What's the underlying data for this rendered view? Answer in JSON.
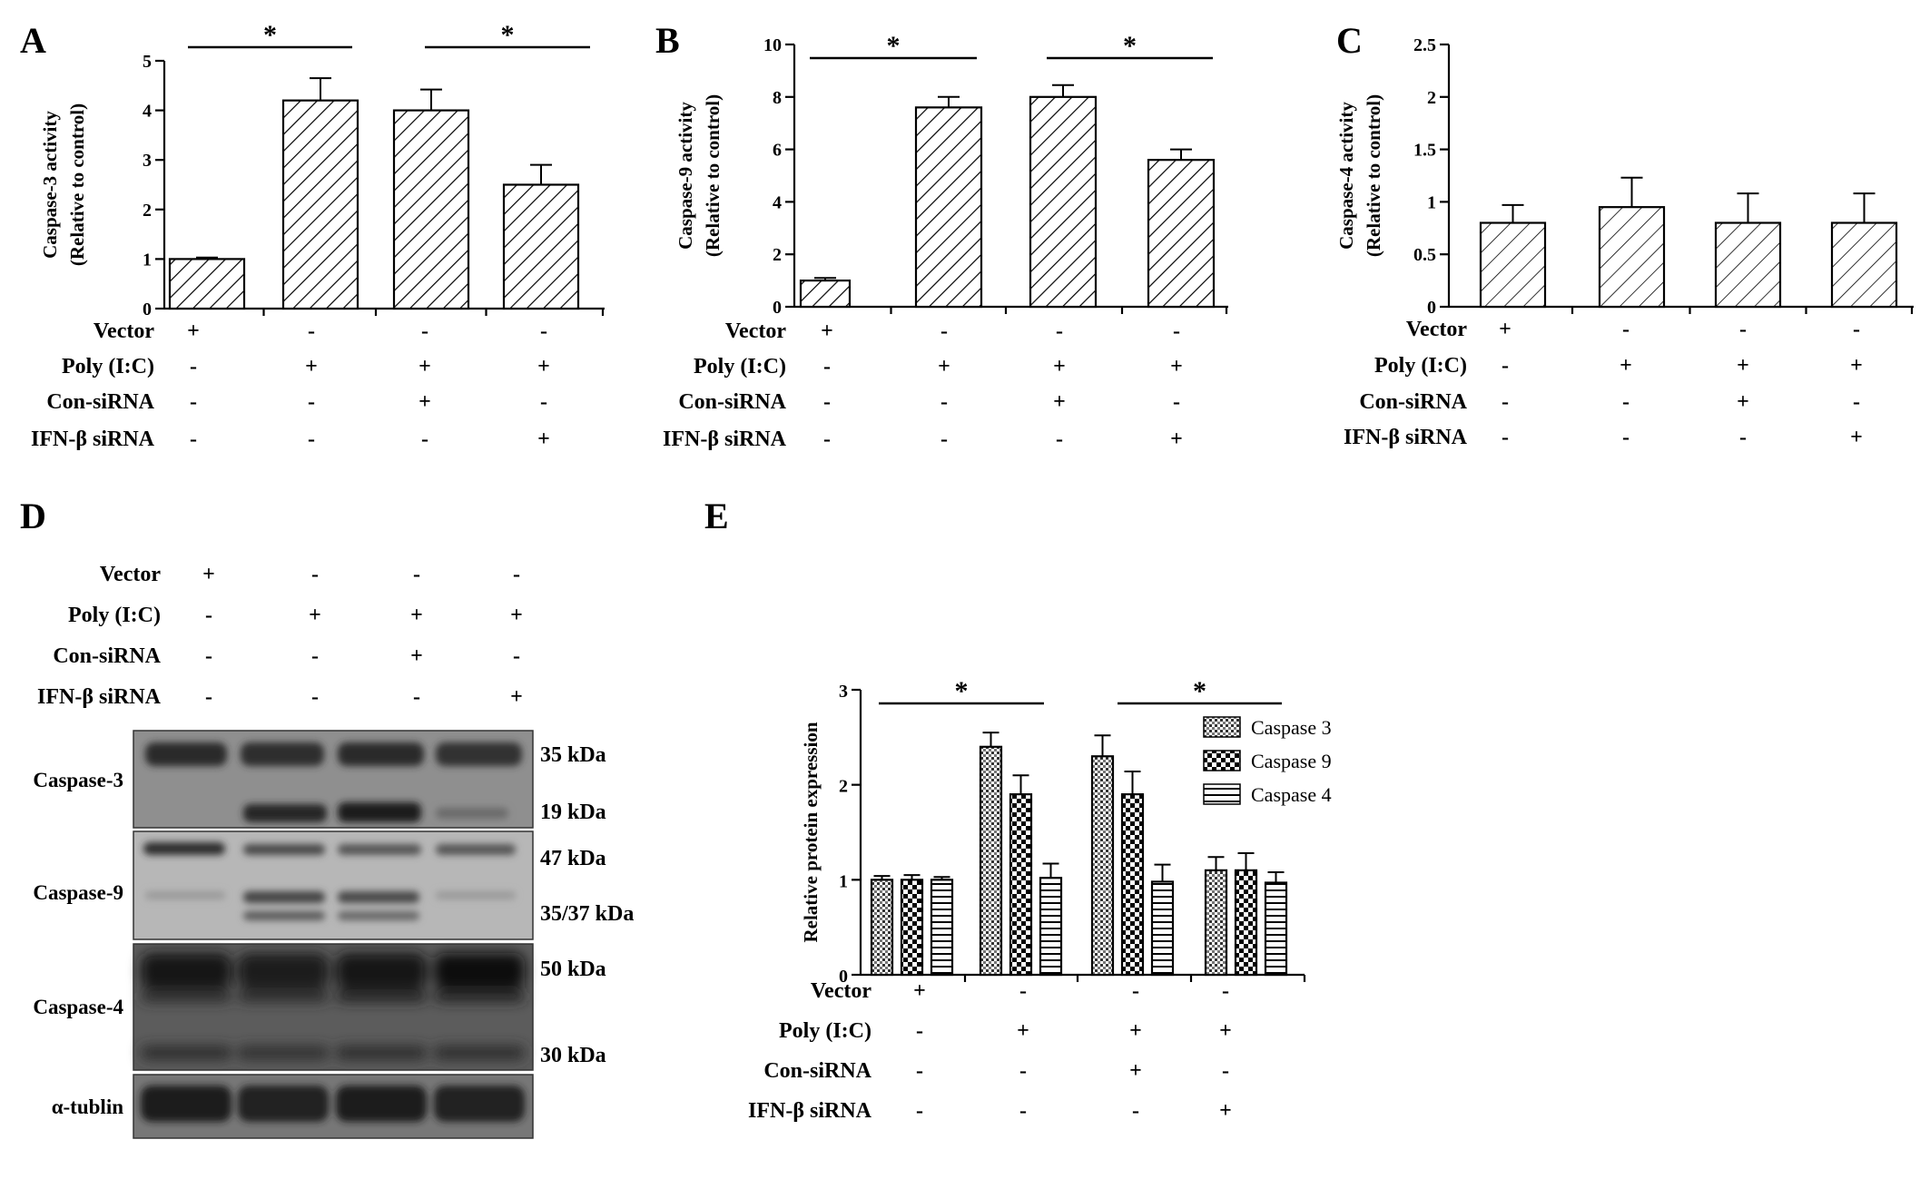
{
  "rows": [
    "Vector",
    "Poly (I:C)",
    "Con-siRNA",
    "IFN-β siRNA"
  ],
  "signs": [
    [
      "+",
      "-",
      "-",
      "-"
    ],
    [
      "-",
      "+",
      "+",
      "+"
    ],
    [
      "-",
      "-",
      "+",
      "-"
    ],
    [
      "-",
      "-",
      "-",
      "+"
    ]
  ],
  "chart_data": [
    {
      "panel": "A",
      "type": "bar",
      "ylabel_line1": "Caspase-3 activity",
      "ylabel_line2": "(Relative to control)",
      "ylim": [
        0,
        5
      ],
      "yticks": [
        "0",
        "1",
        "2",
        "3",
        "4",
        "5"
      ],
      "values": [
        1.0,
        4.2,
        4.0,
        2.5
      ],
      "errors": [
        0.03,
        0.45,
        0.42,
        0.4
      ],
      "significance": [
        "*",
        "*"
      ]
    },
    {
      "panel": "B",
      "type": "bar",
      "ylabel_line1": "Caspase-9 activity",
      "ylabel_line2": "(Relative to control)",
      "ylim": [
        0,
        10
      ],
      "yticks": [
        "0",
        "2",
        "4",
        "6",
        "8",
        "10"
      ],
      "values": [
        1.0,
        7.6,
        8.0,
        5.6
      ],
      "errors": [
        0.1,
        0.4,
        0.45,
        0.4
      ],
      "significance": [
        "*",
        "*"
      ]
    },
    {
      "panel": "C",
      "type": "bar",
      "ylabel_line1": "Caspase-4 activity",
      "ylabel_line2": "(Relative to control)",
      "ylim": [
        0,
        2.5
      ],
      "yticks": [
        "0",
        "0.5",
        "1",
        "1.5",
        "2",
        "2.5"
      ],
      "values": [
        0.8,
        0.95,
        0.8,
        0.8
      ],
      "errors": [
        0.17,
        0.28,
        0.28,
        0.28
      ],
      "significance": []
    },
    {
      "panel": "E",
      "type": "bar",
      "ylabel": "Relative protein expression",
      "ylim": [
        0,
        3
      ],
      "yticks": [
        "0",
        "1",
        "2",
        "3"
      ],
      "series": [
        {
          "name": "Caspase 3",
          "values": [
            1.0,
            2.4,
            2.3,
            1.1
          ],
          "errors": [
            0.04,
            0.15,
            0.22,
            0.14
          ]
        },
        {
          "name": "Caspase 9",
          "values": [
            1.0,
            1.9,
            1.9,
            1.1
          ],
          "errors": [
            0.05,
            0.2,
            0.24,
            0.18
          ]
        },
        {
          "name": "Caspase 4",
          "values": [
            1.0,
            1.02,
            0.98,
            0.97
          ],
          "errors": [
            0.03,
            0.15,
            0.18,
            0.11
          ]
        }
      ],
      "significance": [
        "*",
        "*"
      ],
      "legend_position": "top-right"
    }
  ],
  "blot": {
    "panel": "D",
    "bands": [
      {
        "label": "Caspase-3",
        "kda": [
          "35  kDa",
          "19  kDa"
        ]
      },
      {
        "label": "Caspase-9",
        "kda": [
          "47  kDa",
          "35/37 kDa"
        ]
      },
      {
        "label": "Caspase-4",
        "kda": [
          "50  kDa",
          "30  kDa"
        ]
      },
      {
        "label": "α-tublin",
        "kda": []
      }
    ]
  }
}
